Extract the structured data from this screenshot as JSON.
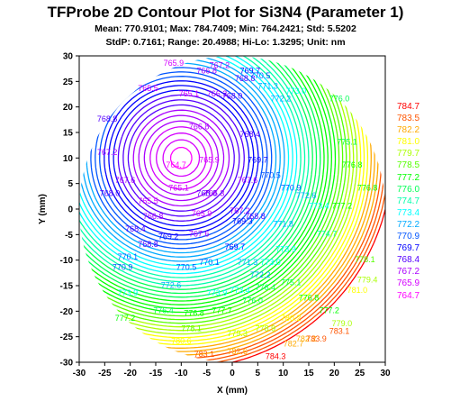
{
  "header": {
    "title": "TFProbe 2D Contour Plot for Si3N4 (Parameter 1)",
    "line1": "Mean: 770.9101; Max: 784.7409; Min: 764.2421; Std: 5.5202",
    "line2": "StdP: 0.7161; Range: 20.4988; Hi-Lo: 1.3295; Unit: nm"
  },
  "chart_data": {
    "type": "contour",
    "xlabel": "X (mm)",
    "ylabel": "Y (mm)",
    "xlim": [
      -30,
      30
    ],
    "ylim": [
      -30,
      30
    ],
    "xticks": [
      -30,
      -25,
      -20,
      -15,
      -10,
      -5,
      0,
      5,
      10,
      15,
      20,
      25,
      30
    ],
    "yticks": [
      30,
      25,
      20,
      15,
      10,
      5,
      0,
      -5,
      -10,
      -15,
      -20,
      -25,
      -30
    ],
    "mean": 770.9101,
    "max": 784.7409,
    "min": 764.2421,
    "min_location": [
      -10,
      10
    ],
    "max_location": [
      5,
      -29
    ],
    "legend": [
      {
        "label": "784.7",
        "color": "#ff0000"
      },
      {
        "label": "783.5",
        "color": "#ff5500"
      },
      {
        "label": "782.2",
        "color": "#ffaa00"
      },
      {
        "label": "781.0",
        "color": "#ffff00"
      },
      {
        "label": "779.7",
        "color": "#aaff00"
      },
      {
        "label": "778.5",
        "color": "#55ff00"
      },
      {
        "label": "777.2",
        "color": "#00ff00"
      },
      {
        "label": "776.0",
        "color": "#00ff55"
      },
      {
        "label": "774.7",
        "color": "#00ffaa"
      },
      {
        "label": "773.4",
        "color": "#00ffff"
      },
      {
        "label": "772.2",
        "color": "#00aaff"
      },
      {
        "label": "770.9",
        "color": "#0055ff"
      },
      {
        "label": "769.7",
        "color": "#0000ff"
      },
      {
        "label": "768.4",
        "color": "#5500ff"
      },
      {
        "label": "767.2",
        "color": "#aa00ff"
      },
      {
        "label": "765.9",
        "color": "#d400ff"
      },
      {
        "label": "764.7",
        "color": "#ff00ff"
      }
    ],
    "contour_labels": [
      {
        "text": "765.9",
        "x": -11.5,
        "y": 28.5,
        "color": "#d400ff"
      },
      {
        "text": "765.5",
        "x": -16.5,
        "y": 23.5,
        "color": "#d400ff"
      },
      {
        "text": "765.1",
        "x": -8.5,
        "y": 22.5,
        "color": "#d400ff"
      },
      {
        "text": "766.8",
        "x": -5.0,
        "y": 27.0,
        "color": "#aa00ff"
      },
      {
        "text": "766.3",
        "x": -3.0,
        "y": 22.5,
        "color": "#aa00ff"
      },
      {
        "text": "767.2",
        "x": -2.5,
        "y": 28.0,
        "color": "#aa00ff"
      },
      {
        "text": "768.8",
        "x": -24.5,
        "y": 17.5,
        "color": "#5500ff"
      },
      {
        "text": "767.2",
        "x": -24.5,
        "y": 11.0,
        "color": "#aa00ff"
      },
      {
        "text": "764.7",
        "x": -11.0,
        "y": 8.5,
        "color": "#ff00ff"
      },
      {
        "text": "765.5",
        "x": -16.5,
        "y": 1.5,
        "color": "#d400ff"
      },
      {
        "text": "765.1",
        "x": -10.5,
        "y": 4.0,
        "color": "#d400ff"
      },
      {
        "text": "766.8",
        "x": -6.5,
        "y": 16.0,
        "color": "#aa00ff"
      },
      {
        "text": "765.9",
        "x": -4.5,
        "y": 9.5,
        "color": "#d400ff"
      },
      {
        "text": "766.3",
        "x": -3.5,
        "y": 3.0,
        "color": "#aa00ff"
      },
      {
        "text": "766.8",
        "x": -15.5,
        "y": -1.5,
        "color": "#aa00ff"
      },
      {
        "text": "765.9",
        "x": -6.0,
        "y": -1.0,
        "color": "#d400ff"
      },
      {
        "text": "767.2",
        "x": 1.5,
        "y": -0.5,
        "color": "#aa00ff"
      },
      {
        "text": "767.6",
        "x": -6.5,
        "y": -5.0,
        "color": "#aa00ff"
      },
      {
        "text": "768.0",
        "x": -5.0,
        "y": 3.0,
        "color": "#5500ff"
      },
      {
        "text": "767.6",
        "x": -21.0,
        "y": 5.5,
        "color": "#aa00ff"
      },
      {
        "text": "768.0",
        "x": -24.0,
        "y": 3.0,
        "color": "#5500ff"
      },
      {
        "text": "768.4",
        "x": -19.0,
        "y": -4.0,
        "color": "#5500ff"
      },
      {
        "text": "768.8",
        "x": -16.5,
        "y": -7.0,
        "color": "#5500ff"
      },
      {
        "text": "769.2",
        "x": -12.5,
        "y": -5.5,
        "color": "#0000ff"
      },
      {
        "text": "770.1",
        "x": -20.5,
        "y": -9.5,
        "color": "#0055ff"
      },
      {
        "text": "770.9",
        "x": -21.5,
        "y": -11.5,
        "color": "#0055ff"
      },
      {
        "text": "770.5",
        "x": -9.0,
        "y": -11.5,
        "color": "#0055ff"
      },
      {
        "text": "770.1",
        "x": -4.5,
        "y": -10.5,
        "color": "#0055ff"
      },
      {
        "text": "769.7",
        "x": 0.5,
        "y": -7.5,
        "color": "#0000ff"
      },
      {
        "text": "769.3",
        "x": 2.0,
        "y": -2.5,
        "color": "#0000ff"
      },
      {
        "text": "768.8",
        "x": 4.5,
        "y": -1.5,
        "color": "#5500ff"
      },
      {
        "text": "767.6",
        "x": 3.0,
        "y": 5.5,
        "color": "#aa00ff"
      },
      {
        "text": "768.0",
        "x": 0.0,
        "y": 22.0,
        "color": "#5500ff"
      },
      {
        "text": "768.8",
        "x": 2.5,
        "y": 25.5,
        "color": "#5500ff"
      },
      {
        "text": "769.7",
        "x": 3.5,
        "y": 27.0,
        "color": "#0000ff"
      },
      {
        "text": "770.5",
        "x": 5.5,
        "y": 26.0,
        "color": "#0055ff"
      },
      {
        "text": "771.3",
        "x": 7.0,
        "y": 24.0,
        "color": "#00aaff"
      },
      {
        "text": "772.2",
        "x": 9.5,
        "y": 21.5,
        "color": "#00aaff"
      },
      {
        "text": "773.0",
        "x": 12.5,
        "y": 23.0,
        "color": "#00ffff"
      },
      {
        "text": "768.4",
        "x": 3.5,
        "y": 14.5,
        "color": "#5500ff"
      },
      {
        "text": "769.7",
        "x": 5.0,
        "y": 9.5,
        "color": "#0000ff"
      },
      {
        "text": "770.5",
        "x": 7.5,
        "y": 6.5,
        "color": "#0055ff"
      },
      {
        "text": "770.9",
        "x": 11.5,
        "y": 4.0,
        "color": "#0055ff"
      },
      {
        "text": "771.8",
        "x": 10.0,
        "y": -3.0,
        "color": "#00aaff"
      },
      {
        "text": "772.6",
        "x": 14.5,
        "y": 2.5,
        "color": "#00aaff"
      },
      {
        "text": "773.4",
        "x": 17.0,
        "y": 0.5,
        "color": "#00ffff"
      },
      {
        "text": "774.7",
        "x": 18.5,
        "y": -5.0,
        "color": "#00ffaa"
      },
      {
        "text": "775.1",
        "x": 22.5,
        "y": 13.0,
        "color": "#00ff55"
      },
      {
        "text": "776.0",
        "x": 21.0,
        "y": 21.5,
        "color": "#00ff55"
      },
      {
        "text": "776.8",
        "x": 23.5,
        "y": 8.5,
        "color": "#00ff00"
      },
      {
        "text": "776.8",
        "x": 26.5,
        "y": 4.0,
        "color": "#00ff00"
      },
      {
        "text": "777.2",
        "x": 21.5,
        "y": 0.5,
        "color": "#00ff00"
      },
      {
        "text": "778.1",
        "x": 26.0,
        "y": -10.0,
        "color": "#55ff00"
      },
      {
        "text": "779.4",
        "x": 26.5,
        "y": -14.0,
        "color": "#aaff00"
      },
      {
        "text": "771.3",
        "x": 3.0,
        "y": -10.5,
        "color": "#00aaff"
      },
      {
        "text": "772.2",
        "x": 5.5,
        "y": -13.0,
        "color": "#00aaff"
      },
      {
        "text": "773.0",
        "x": 7.5,
        "y": -10.5,
        "color": "#00ffff"
      },
      {
        "text": "773.9",
        "x": 10.5,
        "y": -8.0,
        "color": "#00ffff"
      },
      {
        "text": "773.4",
        "x": 1.5,
        "y": -16.0,
        "color": "#00ffff"
      },
      {
        "text": "773.9",
        "x": -3.0,
        "y": -16.5,
        "color": "#00ffff"
      },
      {
        "text": "772.6",
        "x": -12.0,
        "y": -15.0,
        "color": "#00aaff"
      },
      {
        "text": "773.9",
        "x": -20.5,
        "y": -16.5,
        "color": "#00ffff"
      },
      {
        "text": "776.0",
        "x": 4.0,
        "y": -18.0,
        "color": "#00ff55"
      },
      {
        "text": "776.4",
        "x": 6.5,
        "y": -15.5,
        "color": "#00ff55"
      },
      {
        "text": "775.1",
        "x": 11.5,
        "y": -14.5,
        "color": "#00ff55"
      },
      {
        "text": "776.8",
        "x": 15.0,
        "y": -17.5,
        "color": "#00ff00"
      },
      {
        "text": "777.2",
        "x": 19.0,
        "y": -20.0,
        "color": "#00ff00"
      },
      {
        "text": "779.0",
        "x": 21.5,
        "y": -22.5,
        "color": "#aaff00"
      },
      {
        "text": "781.0",
        "x": 24.5,
        "y": -16.0,
        "color": "#ffff00"
      },
      {
        "text": "777.2",
        "x": -21.0,
        "y": -21.5,
        "color": "#00ff00"
      },
      {
        "text": "776.4",
        "x": -13.5,
        "y": -20.0,
        "color": "#00ff55"
      },
      {
        "text": "776.8",
        "x": -7.5,
        "y": -20.5,
        "color": "#00ff00"
      },
      {
        "text": "777.7",
        "x": -2.0,
        "y": -20.0,
        "color": "#00ff00"
      },
      {
        "text": "778.1",
        "x": -8.0,
        "y": -23.5,
        "color": "#55ff00"
      },
      {
        "text": "779.3",
        "x": 1.0,
        "y": -24.5,
        "color": "#aaff00"
      },
      {
        "text": "780.6",
        "x": -10.0,
        "y": -26.0,
        "color": "#ffff00"
      },
      {
        "text": "778.9",
        "x": 6.5,
        "y": -23.5,
        "color": "#aaff00"
      },
      {
        "text": "780.2",
        "x": 11.5,
        "y": -21.5,
        "color": "#ffff00"
      },
      {
        "text": "782.2",
        "x": 14.5,
        "y": -25.5,
        "color": "#ffaa00"
      },
      {
        "text": "782.7",
        "x": 12.0,
        "y": -26.5,
        "color": "#ffaa00"
      },
      {
        "text": "783.1",
        "x": 21.0,
        "y": -24.0,
        "color": "#ff5500"
      },
      {
        "text": "783.9",
        "x": 16.5,
        "y": -25.5,
        "color": "#ff5500"
      },
      {
        "text": "783.1",
        "x": -5.5,
        "y": -28.5,
        "color": "#ff5500"
      },
      {
        "text": "782.6",
        "x": 1.0,
        "y": -28.0,
        "color": "#ffaa00"
      },
      {
        "text": "784.3",
        "x": 8.5,
        "y": -29.0,
        "color": "#ff0000"
      }
    ]
  }
}
